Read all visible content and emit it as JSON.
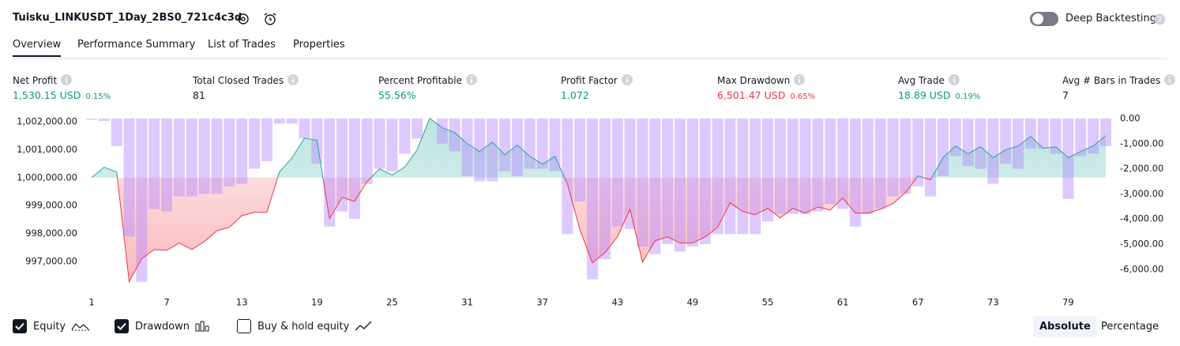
{
  "header": {
    "title": "Tuisku_LINKUSDT_1Day_2BS0_721c4c3d",
    "deep_backtesting": "Deep Backtesting"
  },
  "tabs": [
    "Overview",
    "Performance Summary",
    "List of Trades",
    "Properties"
  ],
  "metrics": [
    {
      "label": "Net Profit",
      "value": "1,530.15 USD",
      "percent": "0.15%",
      "color": "#089981"
    },
    {
      "label": "Total Closed Trades",
      "value": "81",
      "color": "#131722"
    },
    {
      "label": "Percent Profitable",
      "value": "55.56%",
      "color": "#089981"
    },
    {
      "label": "Profit Factor",
      "value": "1.072",
      "color": "#089981"
    },
    {
      "label": "Max Drawdown",
      "value": "6,501.47 USD",
      "percent": "0.65%",
      "color": "#f23645"
    },
    {
      "label": "Avg Trade",
      "value": "18.89 USD",
      "percent": "0.19%",
      "color": "#089981"
    },
    {
      "label": "Avg # Bars in Trades",
      "value": "7",
      "color": "#131722"
    }
  ],
  "legend": [
    {
      "label": "Equity",
      "checked": true
    },
    {
      "label": "Drawdown",
      "checked": true
    },
    {
      "label": "Buy & hold equity",
      "checked": false
    }
  ],
  "modes": [
    {
      "label": "Absolute",
      "active": true
    },
    {
      "label": "Percentage",
      "active": false
    }
  ],
  "chart_data": {
    "type": "equity-drawdown",
    "x": [
      1,
      2,
      3,
      4,
      5,
      6,
      7,
      8,
      9,
      10,
      11,
      12,
      13,
      14,
      15,
      16,
      17,
      18,
      19,
      20,
      21,
      22,
      23,
      24,
      25,
      26,
      27,
      28,
      29,
      30,
      31,
      32,
      33,
      34,
      35,
      36,
      37,
      38,
      39,
      40,
      41,
      42,
      43,
      44,
      45,
      46,
      47,
      48,
      49,
      50,
      51,
      52,
      53,
      54,
      55,
      56,
      57,
      58,
      59,
      60,
      61,
      62,
      63,
      64,
      65,
      66,
      67,
      68,
      69,
      70,
      71,
      72,
      73,
      74,
      75,
      76,
      77,
      78,
      79,
      80,
      81,
      82
    ],
    "xlim": [
      1,
      82
    ],
    "xticks": [
      1,
      7,
      13,
      19,
      25,
      31,
      37,
      43,
      49,
      55,
      61,
      67,
      73,
      79
    ],
    "series": [
      {
        "name": "Equity",
        "color": "#26a69a",
        "values": [
          1000000,
          1000370,
          1000200,
          996280,
          997100,
          997430,
          997400,
          997660,
          997430,
          997710,
          998100,
          998220,
          998640,
          998760,
          998760,
          1000200,
          1000700,
          1001410,
          1001330,
          998530,
          999290,
          999150,
          999860,
          1000310,
          1000090,
          1000370,
          1000990,
          1002120,
          1001780,
          1001610,
          1001210,
          1000930,
          1001270,
          1000820,
          1001160,
          1000760,
          1000480,
          1000760,
          999780,
          998140,
          996950,
          997320,
          997880,
          998870,
          996980,
          997740,
          997880,
          997660,
          997660,
          997880,
          998220,
          999100,
          998790,
          998670,
          998900,
          998560,
          998900,
          998730,
          998950,
          998840,
          999270,
          998730,
          998730,
          998870,
          999070,
          999460,
          1000060,
          999920,
          1000710,
          1001130,
          1000850,
          1001100,
          1000710,
          1000990,
          1001130,
          1001470,
          1001050,
          1001100,
          1000710,
          1000930,
          1001130,
          1001500
        ]
      },
      {
        "name": "Drawdown",
        "color": "#b388ff",
        "axis": "y2",
        "values": [
          -50,
          -100,
          -1100,
          -4700,
          -6500,
          -3600,
          -3700,
          -3100,
          -3100,
          -3000,
          -3000,
          -2700,
          -2600,
          -2000,
          -1700,
          -200,
          -200,
          -800,
          -1800,
          -4300,
          -3700,
          -4000,
          -2600,
          -2000,
          -2100,
          -1400,
          -800,
          0,
          -1000,
          -1300,
          -2300,
          -2500,
          -2500,
          -2100,
          -2300,
          -2000,
          -2000,
          -2100,
          -4600,
          -3300,
          -6400,
          -5600,
          -4300,
          -4400,
          -5100,
          -5400,
          -5000,
          -5300,
          -5100,
          -5000,
          -4600,
          -4600,
          -4600,
          -4600,
          -4100,
          -3800,
          -3800,
          -3800,
          -3700,
          -3400,
          -3600,
          -4300,
          -3800,
          -3600,
          -3100,
          -3000,
          -2700,
          -3100,
          -2300,
          -1500,
          -1900,
          -2000,
          -2600,
          -1800,
          -2000,
          -1200,
          -1200,
          -1400,
          -3200,
          -1500,
          -1400,
          -1100
        ]
      }
    ],
    "down_color": "#f23645",
    "ylim": [
      996240,
      1002110
    ],
    "yticks": [
      {
        "value": 1002000,
        "label": "1,002,000.00"
      },
      {
        "value": 1001000,
        "label": "1,001,000.00"
      },
      {
        "value": 1000000,
        "label": "1,000,000.00"
      },
      {
        "value": 999000,
        "label": "999,000.00"
      },
      {
        "value": 998000,
        "label": "998,000.00"
      },
      {
        "value": 997000,
        "label": "997,000.00"
      }
    ],
    "y2lim": [
      -6540,
      0
    ],
    "y2ticks": [
      {
        "value": 0,
        "label": "0.00"
      },
      {
        "value": -1000,
        "label": "-1,000.00"
      },
      {
        "value": -2000,
        "label": "-2,000.00"
      },
      {
        "value": -3000,
        "label": "-3,000.00"
      },
      {
        "value": -4000,
        "label": "-4,000.00"
      },
      {
        "value": -5000,
        "label": "-5,000.00"
      },
      {
        "value": -6000,
        "label": "-6,000.00"
      }
    ]
  }
}
